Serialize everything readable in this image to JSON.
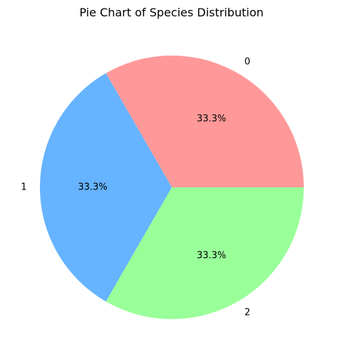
{
  "chart_data": {
    "type": "pie",
    "title": "Pie Chart of Species Distribution",
    "categories": [
      "0",
      "1",
      "2"
    ],
    "values": [
      33.3,
      33.3,
      33.3
    ],
    "percent_labels": [
      "33.3%",
      "33.3%",
      "33.3%"
    ],
    "colors": [
      "#ff9999",
      "#66b3ff",
      "#99ff99"
    ],
    "legend": "none"
  }
}
